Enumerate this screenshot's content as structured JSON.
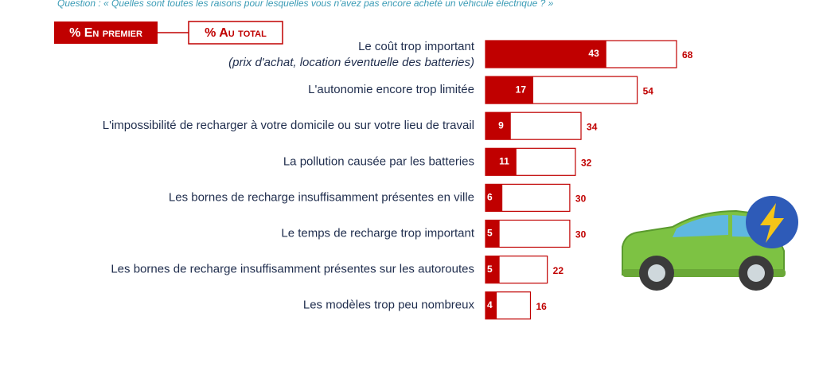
{
  "chart_data": {
    "type": "bar",
    "title": "Question : « Quelles sont toutes les raisons pour lesquelles vous n'avez pas encore acheté un véhicule électrique ? »",
    "categories": [
      "Le coût trop important",
      "L'autonomie encore trop limitée",
      "L'impossibilité de recharger à votre domicile ou sur votre lieu de travail",
      "La pollution causée par les batteries",
      "Les bornes de recharge insuffisamment présentes en ville",
      "Le temps de recharge trop important",
      "Les bornes de recharge insuffisamment présentes sur les autoroutes",
      "Les modèles trop peu nombreux"
    ],
    "category_notes": [
      "(prix d'achat, location éventuelle des batteries)",
      null,
      null,
      null,
      null,
      null,
      null,
      null
    ],
    "series": [
      {
        "name": "% Au total",
        "color": "#c00000",
        "values": [
          68,
          54,
          34,
          32,
          30,
          30,
          22,
          16
        ]
      },
      {
        "name": "% En premier",
        "color": "#c00000",
        "values": [
          43,
          17,
          9,
          11,
          6,
          5,
          5,
          4
        ]
      }
    ]
  }
}
